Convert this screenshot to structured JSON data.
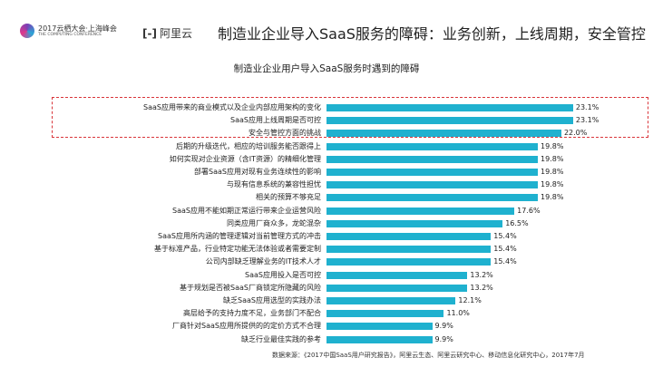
{
  "header": {
    "conference": "2017云栖大会·上海峰会",
    "conference_en": "THE COMPUTING CONFERENCE",
    "brand": "阿里云",
    "title": "制造业企业导入SaaS服务的障碍：业务创新，上线周期，安全管控"
  },
  "chart_data": {
    "type": "bar",
    "orientation": "horizontal",
    "title": "制造业企业用户导入SaaS服务时遇到的障碍",
    "categories": [
      "SaaS应用带来的商业模式以及企业内部应用架构的变化",
      "SaaS应用上线周期是否可控",
      "安全与管控方面的挑战",
      "后期的升级迭代，相应的培训服务能否跟得上",
      "如何实现对企业资源（含IT资源）的精细化管理",
      "部署SaaS应用对现有业务连续性的影响",
      "与现有信息系统的兼容性担忧",
      "相关的预算不够充足",
      "SaaS应用不能如期正常运行带来企业运营风险",
      "同类应用厂商众多，龙蛇混杂",
      "SaaS应用所内涵的管理逻辑对当前管理方式的冲击",
      "基于标准产品，行业特定功能无法体验或者需要定制",
      "公司内部缺乏理解业务的IT技术人才",
      "SaaS应用投入是否可控",
      "基于规划是否被SaaS厂商锁定所隐藏的风险",
      "缺乏SaaS应用选型的实践办法",
      "高层给予的支持力度不足，业务部门不配合",
      "厂商针对SaaS应用所提供的的定价方式不合理",
      "缺乏行业最佳实践的参考"
    ],
    "values": [
      23.1,
      23.1,
      22.0,
      19.8,
      19.8,
      19.8,
      19.8,
      19.8,
      17.6,
      16.5,
      15.4,
      15.4,
      15.4,
      13.2,
      13.2,
      12.1,
      11.0,
      9.9,
      9.9
    ],
    "value_labels": [
      "23.1%",
      "23.1%",
      "22.0%",
      "19.8%",
      "19.8%",
      "19.8%",
      "19.8%",
      "19.8%",
      "17.6%",
      "16.5%",
      "15.4%",
      "15.4%",
      "15.4%",
      "13.2%",
      "13.2%",
      "12.1%",
      "11.0%",
      "9.9%",
      "9.9%"
    ],
    "highlighted_top": 3,
    "bar_color": "#1fb1cf",
    "highlight_color": "#d9353a",
    "grid": false
  },
  "source": "数据来源：《2017中国SaaS用户研究报告》，阿里云生态、阿里云研究中心、移动信息化研究中心，2017年7月"
}
